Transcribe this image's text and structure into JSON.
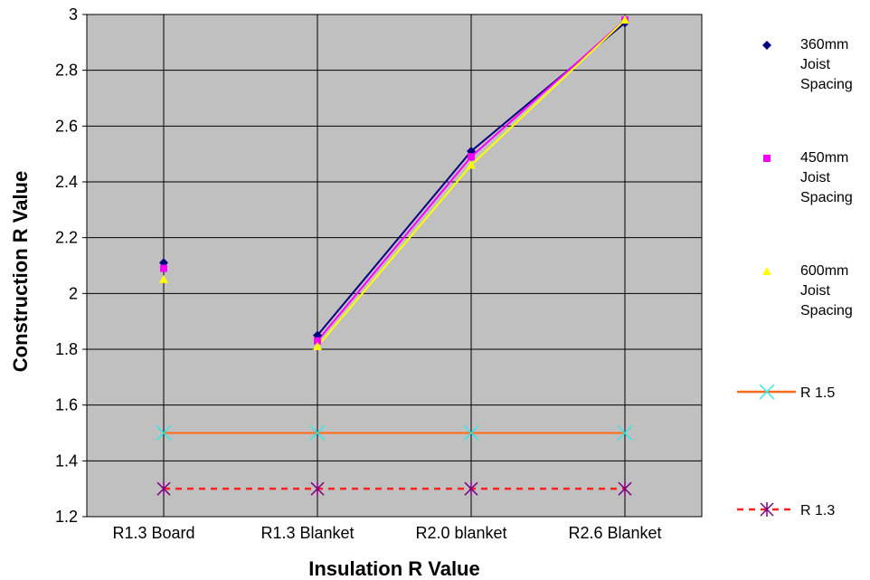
{
  "chart_data": {
    "type": "line",
    "xlabel": "Insulation R Value",
    "ylabel": "Construction R Value",
    "categories": [
      "R1.3 Board",
      "R1.3 Blanket",
      "R2.0 blanket",
      "R2.6 Blanket"
    ],
    "ylim": [
      1.2,
      3
    ],
    "yticks": [
      1.2,
      1.4,
      1.6,
      1.8,
      2,
      2.2,
      2.4,
      2.6,
      2.8,
      3
    ],
    "grid": true,
    "plot_background": "#c0c0c0",
    "legend_position": "right",
    "series": [
      {
        "name": "360mm Joist Spacing",
        "name_lines": [
          "360mm",
          "Joist",
          "Spacing"
        ],
        "values": [
          2.11,
          1.85,
          2.51,
          2.97
        ],
        "marker": "diamond",
        "marker_color": "#000080",
        "line_color": "#000080",
        "line_from_index": 1
      },
      {
        "name": "450mm Joist Spacing",
        "name_lines": [
          "450mm",
          "Joist",
          "Spacing"
        ],
        "values": [
          2.09,
          1.83,
          2.49,
          2.98
        ],
        "marker": "square",
        "marker_color": "#ff00ff",
        "line_color": "#ff00ff",
        "line_from_index": 1
      },
      {
        "name": "600mm Joist Spacing",
        "name_lines": [
          "600mm",
          "Joist",
          "Spacing"
        ],
        "values": [
          2.05,
          1.81,
          2.46,
          2.98
        ],
        "marker": "triangle",
        "marker_color": "#ffff00",
        "line_color": "#ffff00",
        "line_from_index": 1
      },
      {
        "name": "R 1.5",
        "name_lines": [
          "R 1.5"
        ],
        "values": [
          1.5,
          1.5,
          1.5,
          1.5
        ],
        "marker": "x",
        "marker_color": "#33e6e6",
        "line_color": "#ff6a1a",
        "dashed": false
      },
      {
        "name": "R 1.3",
        "name_lines": [
          "R 1.3"
        ],
        "values": [
          1.3,
          1.3,
          1.3,
          1.3
        ],
        "marker": "star",
        "marker_color": "#800080",
        "line_color": "#ff2020",
        "dashed": true
      }
    ]
  }
}
